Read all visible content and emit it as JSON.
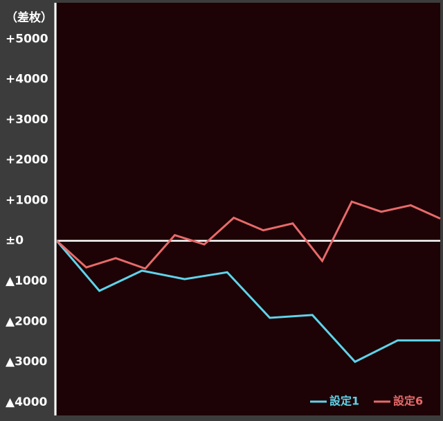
{
  "chart_data": {
    "type": "line",
    "y_axis_title": "（差枚）",
    "ylim": [
      -4330,
      5900
    ],
    "yticks": [
      {
        "value": 5000,
        "label": "+5000"
      },
      {
        "value": 4000,
        "label": "+4000"
      },
      {
        "value": 3000,
        "label": "+3000"
      },
      {
        "value": 2000,
        "label": "+2000"
      },
      {
        "value": 1000,
        "label": "+1000"
      },
      {
        "value": 0,
        "label": "±0"
      },
      {
        "value": -1000,
        "label": "▲1000"
      },
      {
        "value": -2000,
        "label": "▲2000"
      },
      {
        "value": -3000,
        "label": "▲3000"
      },
      {
        "value": -4000,
        "label": "▲4000"
      }
    ],
    "xlim": [
      0,
      117
    ],
    "legend": "bottom-right",
    "series": [
      {
        "name": "設定1",
        "color": "#5fd3ea",
        "x": [
          0,
          13,
          26,
          39,
          52,
          65,
          78,
          91,
          104,
          117
        ],
        "values": [
          0,
          -1240,
          -740,
          -950,
          -780,
          -1910,
          -1840,
          -3000,
          -2470,
          -2470
        ]
      },
      {
        "name": "設定6",
        "color": "#e86a6a",
        "x": [
          0,
          9,
          18,
          27,
          36,
          45,
          54,
          63,
          72,
          81,
          90,
          99,
          108,
          117
        ],
        "values": [
          0,
          -660,
          -430,
          -690,
          140,
          -90,
          570,
          260,
          430,
          -500,
          970,
          720,
          880,
          550
        ]
      }
    ]
  }
}
